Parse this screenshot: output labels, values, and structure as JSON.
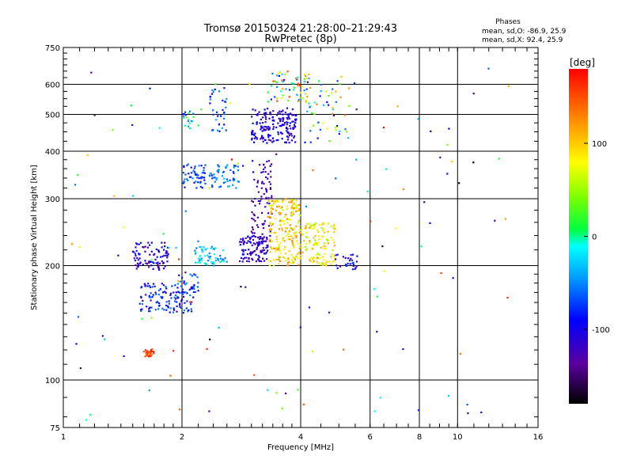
{
  "chart_data": {
    "type": "scatter",
    "title": "Tromsø 20150324 21:28:00–21:29:43",
    "subtitle": "RwPretec (8p)",
    "xlabel": "Frequency [MHz]",
    "ylabel": "Stationary phase Virtual Height [km]",
    "x_scale": "log",
    "y_scale": "log",
    "xlim": [
      1,
      16
    ],
    "ylim": [
      75,
      750
    ],
    "x_ticks": [
      1,
      2,
      4,
      6,
      8,
      10,
      16
    ],
    "y_ticks": [
      75,
      100,
      200,
      300,
      400,
      500,
      600,
      750
    ],
    "grid": true,
    "stats": {
      "heading": "Phases",
      "line_o": "mean, sd,O: -86.9, 25.9",
      "line_x": "mean, sd,X:  92.4, 25.9"
    },
    "colorbar": {
      "label": "[deg]",
      "range": [
        -180,
        180
      ],
      "ticks": [
        100,
        0,
        -100
      ]
    },
    "clusters": [
      {
        "x": [
          3.0,
          3.9
        ],
        "y": [
          420,
          520
        ],
        "phase": [
          -130,
          -80
        ],
        "count": 180
      },
      {
        "x": [
          3.3,
          4.2
        ],
        "y": [
          540,
          650
        ],
        "phase": [
          -120,
          160
        ],
        "count": 60
      },
      {
        "x": [
          4.1,
          5.4
        ],
        "y": [
          420,
          640
        ],
        "phase": [
          -100,
          140
        ],
        "count": 55
      },
      {
        "x": [
          2.0,
          2.3
        ],
        "y": [
          320,
          370
        ],
        "phase": [
          -110,
          -40
        ],
        "count": 55
      },
      {
        "x": [
          2.35,
          2.8
        ],
        "y": [
          320,
          370
        ],
        "phase": [
          -80,
          -30
        ],
        "count": 55
      },
      {
        "x": [
          2.35,
          2.6
        ],
        "y": [
          450,
          590
        ],
        "phase": [
          -100,
          -40
        ],
        "count": 35
      },
      {
        "x": [
          2.0,
          2.2
        ],
        "y": [
          460,
          510
        ],
        "phase": [
          -100,
          40
        ],
        "count": 20
      },
      {
        "x": [
          2.8,
          3.3
        ],
        "y": [
          205,
          240
        ],
        "phase": [
          -140,
          -80
        ],
        "count": 110
      },
      {
        "x": [
          3.0,
          3.4
        ],
        "y": [
          230,
          380
        ],
        "phase": [
          -150,
          -100
        ],
        "count": 90
      },
      {
        "x": [
          3.3,
          4.0
        ],
        "y": [
          200,
          300
        ],
        "phase": [
          60,
          130
        ],
        "count": 210
      },
      {
        "x": [
          4.0,
          4.9
        ],
        "y": [
          200,
          260
        ],
        "phase": [
          50,
          120
        ],
        "count": 120
      },
      {
        "x": [
          4.9,
          5.6
        ],
        "y": [
          195,
          215
        ],
        "phase": [
          -130,
          -70
        ],
        "count": 30
      },
      {
        "x": [
          2.15,
          2.6
        ],
        "y": [
          200,
          225
        ],
        "phase": [
          -60,
          0
        ],
        "count": 60
      },
      {
        "x": [
          1.5,
          1.85
        ],
        "y": [
          195,
          230
        ],
        "phase": [
          -140,
          -80
        ],
        "count": 90
      },
      {
        "x": [
          1.55,
          2.15
        ],
        "y": [
          150,
          180
        ],
        "phase": [
          -120,
          -50
        ],
        "count": 120
      },
      {
        "x": [
          1.95,
          2.2
        ],
        "y": [
          170,
          190
        ],
        "phase": [
          -110,
          -40
        ],
        "count": 30
      },
      {
        "x": [
          1.6,
          1.7
        ],
        "y": [
          115,
          121
        ],
        "phase": [
          140,
          170
        ],
        "count": 30
      },
      {
        "x": [
          1.05,
          13.5
        ],
        "y": [
          78,
          680
        ],
        "phase": [
          -180,
          180
        ],
        "count": 120
      }
    ]
  }
}
